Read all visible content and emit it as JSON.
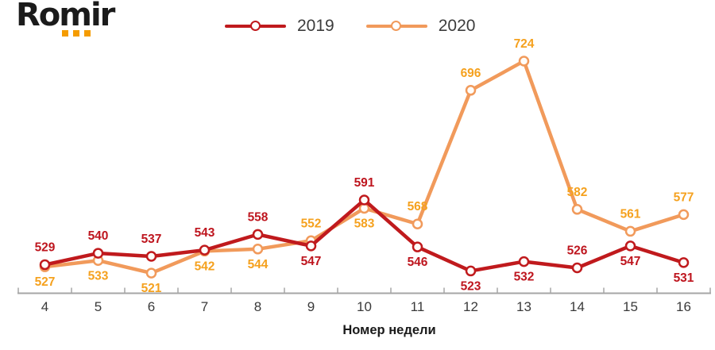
{
  "header": {
    "logo_text": "Romir",
    "logo_dot_color": "#F59C00"
  },
  "chart_data": {
    "type": "line",
    "title": "",
    "xlabel": "Номер недели",
    "ylabel": "",
    "x": [
      4,
      5,
      6,
      7,
      8,
      9,
      10,
      11,
      12,
      13,
      14,
      15,
      16
    ],
    "ylim": [
      500,
      745
    ],
    "grid": false,
    "legend_position": "top-center",
    "marker": "open-circle",
    "axis_color": "#A6A6A6",
    "tick_label_color": "#3A3A3A",
    "xlabel_color": "#1A1A1A",
    "series": [
      {
        "name": "2019",
        "color": "#C01A1D",
        "label_color": "#BE151E",
        "values": [
          529,
          540,
          537,
          543,
          558,
          547,
          591,
          546,
          523,
          532,
          526,
          547,
          531
        ],
        "label_positions": [
          "above",
          "above",
          "above",
          "above",
          "above",
          "below",
          "above",
          "below",
          "below",
          "below",
          "above",
          "below",
          "below"
        ]
      },
      {
        "name": "2020",
        "color": "#F19A5B",
        "label_color": "#F5A11E",
        "values": [
          527,
          533,
          521,
          542,
          544,
          552,
          583,
          568,
          696,
          724,
          582,
          561,
          577
        ],
        "label_positions": [
          "below",
          "below",
          "below",
          "below",
          "below",
          "above",
          "below",
          "above",
          "above",
          "above",
          "above",
          "above",
          "above"
        ]
      }
    ]
  }
}
